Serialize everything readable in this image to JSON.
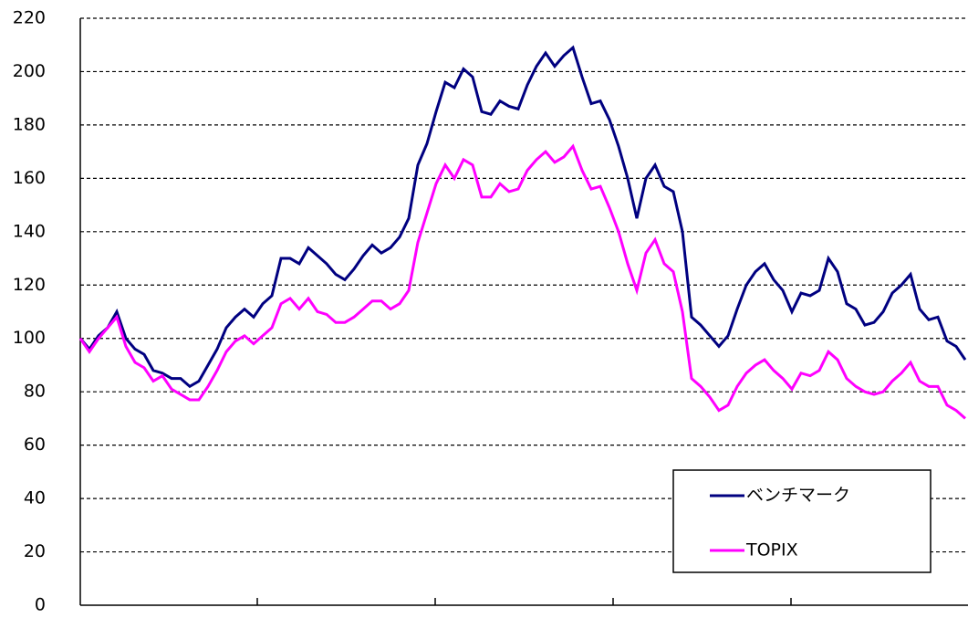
{
  "chart_data": {
    "type": "line",
    "categories": [
      null,
      null,
      null,
      null,
      null,
      null,
      null,
      null,
      null,
      null,
      null,
      null,
      null,
      null,
      null,
      null,
      null,
      null,
      null,
      null,
      null,
      null,
      null,
      null,
      null,
      null,
      null,
      null,
      null,
      null,
      null,
      null,
      null,
      null,
      null,
      null,
      null,
      null,
      null,
      null,
      null,
      null,
      null,
      null,
      null,
      null,
      null,
      null,
      null,
      null,
      null,
      null,
      null,
      null,
      null,
      null,
      null,
      null,
      null,
      null,
      null,
      null,
      null,
      null,
      null,
      null,
      null,
      null,
      null,
      null,
      null,
      null,
      null,
      null,
      null,
      null,
      null,
      null,
      null,
      null,
      null,
      null,
      null,
      null,
      null,
      null,
      null,
      null,
      null,
      null,
      null,
      null,
      null,
      null,
      null,
      null,
      null,
      null
    ],
    "series": [
      {
        "name": "ベンチマーク",
        "color": "#000080",
        "values": [
          100,
          96,
          101,
          104,
          110,
          100,
          96,
          94,
          88,
          87,
          85,
          85,
          82,
          84,
          90,
          96,
          104,
          108,
          111,
          108,
          113,
          116,
          130,
          130,
          128,
          134,
          131,
          128,
          124,
          122,
          126,
          131,
          135,
          132,
          134,
          138,
          145,
          165,
          173,
          185,
          196,
          194,
          201,
          198,
          185,
          184,
          189,
          187,
          186,
          195,
          202,
          207,
          202,
          206,
          209,
          198,
          188,
          189,
          182,
          172,
          160,
          145,
          160,
          165,
          157,
          155,
          140,
          108,
          105,
          101,
          97,
          101,
          111,
          120,
          125,
          128,
          122,
          118,
          110,
          117,
          116,
          118,
          130,
          125,
          113,
          111,
          105,
          106,
          110,
          117,
          120,
          124,
          111,
          107,
          108,
          99,
          97,
          92
        ]
      },
      {
        "name": "TOPIX",
        "color": "#ff00ff",
        "values": [
          100,
          95,
          100,
          104,
          108,
          97,
          91,
          89,
          84,
          86,
          81,
          79,
          77,
          77,
          82,
          88,
          95,
          99,
          101,
          98,
          101,
          104,
          113,
          115,
          111,
          115,
          110,
          109,
          106,
          106,
          108,
          111,
          114,
          114,
          111,
          113,
          118,
          136,
          147,
          158,
          165,
          160,
          167,
          165,
          153,
          153,
          158,
          155,
          156,
          163,
          167,
          170,
          166,
          168,
          172,
          163,
          156,
          157,
          149,
          140,
          128,
          118,
          132,
          137,
          128,
          125,
          110,
          85,
          82,
          78,
          73,
          75,
          82,
          87,
          90,
          92,
          88,
          85,
          81,
          87,
          86,
          88,
          95,
          92,
          85,
          82,
          80,
          79,
          80,
          84,
          87,
          91,
          84,
          82,
          82,
          75,
          73,
          70
        ]
      }
    ],
    "ylim": [
      0,
      220
    ],
    "yticks": [
      0,
      20,
      40,
      60,
      80,
      100,
      120,
      140,
      160,
      180,
      200,
      220
    ],
    "grid": true,
    "legend": "lower right"
  }
}
